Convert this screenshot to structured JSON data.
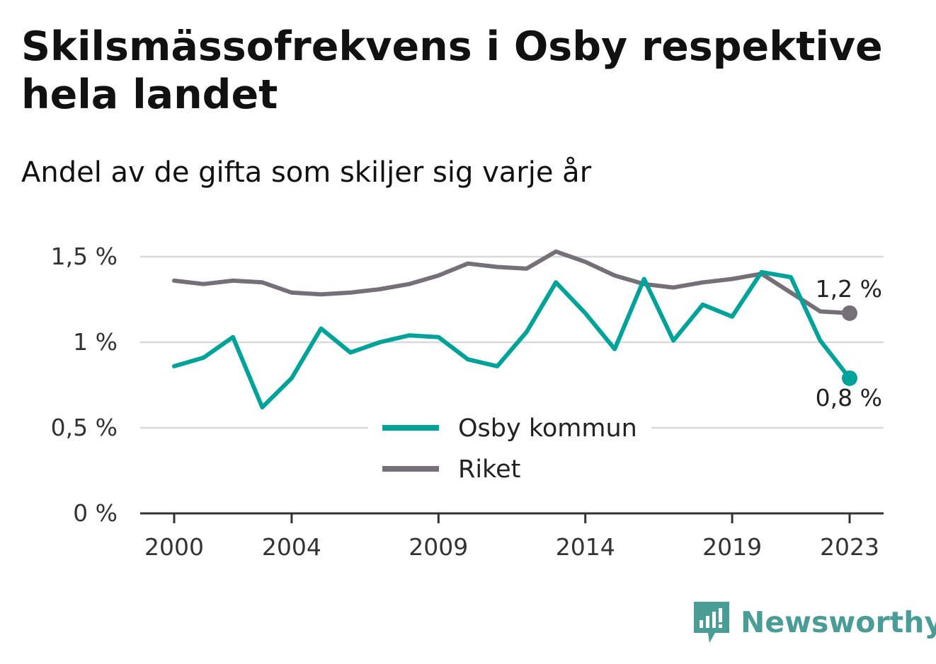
{
  "header": {
    "title": "Skilsmässofrekvens i Osby respektive hela landet",
    "subtitle": "Andel av de gifta som skiljer sig varje år"
  },
  "brand": {
    "name": "Newsworthy",
    "icon": "newsworthy-logo-icon",
    "color": "#4a9d96"
  },
  "chart_data": {
    "type": "line",
    "x": [
      2000,
      2001,
      2002,
      2003,
      2004,
      2005,
      2006,
      2007,
      2008,
      2009,
      2010,
      2011,
      2012,
      2013,
      2014,
      2015,
      2016,
      2017,
      2018,
      2019,
      2020,
      2021,
      2022,
      2023
    ],
    "xticks": [
      2000,
      2004,
      2009,
      2014,
      2019,
      2023
    ],
    "xtick_labels": [
      "2000",
      "2004",
      "2009",
      "2014",
      "2019",
      "2023"
    ],
    "yticks": [
      0,
      0.5,
      1,
      1.5
    ],
    "ytick_labels": [
      "0 %",
      "0,5 %",
      "1 %",
      "1,5 %"
    ],
    "ylim": [
      0,
      1.5
    ],
    "xlim": [
      2000,
      2023
    ],
    "grid": true,
    "legend_position": "bottom-center",
    "series": [
      {
        "name": "Osby kommun",
        "color": "#00a39a",
        "values": [
          0.86,
          0.91,
          1.03,
          0.62,
          0.79,
          1.08,
          0.94,
          1.0,
          1.04,
          1.03,
          0.9,
          0.86,
          1.06,
          1.35,
          1.17,
          0.96,
          1.37,
          1.01,
          1.22,
          1.15,
          1.41,
          1.38,
          1.01,
          0.79
        ],
        "end_label": "0,8 %"
      },
      {
        "name": "Riket",
        "color": "#757078",
        "values": [
          1.36,
          1.34,
          1.36,
          1.35,
          1.29,
          1.28,
          1.29,
          1.31,
          1.34,
          1.39,
          1.46,
          1.44,
          1.43,
          1.53,
          1.47,
          1.39,
          1.34,
          1.32,
          1.35,
          1.37,
          1.4,
          1.29,
          1.18,
          1.17
        ],
        "end_label": "1,2 %"
      }
    ]
  }
}
